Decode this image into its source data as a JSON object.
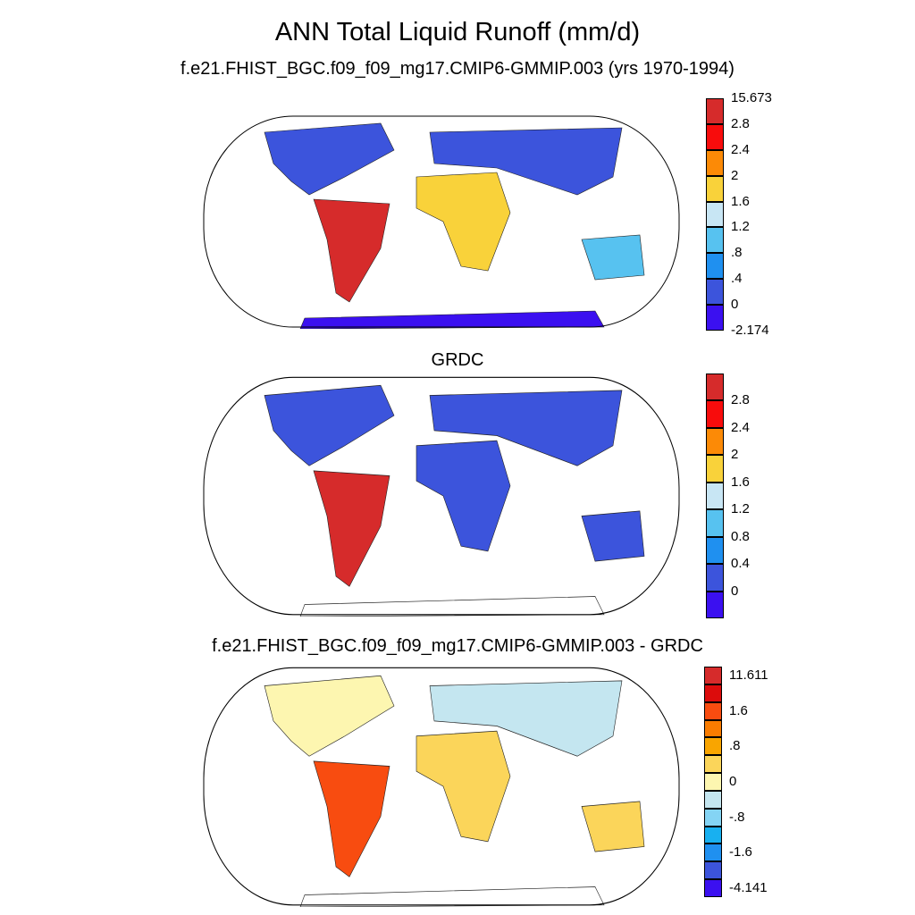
{
  "title": "ANN Total Liquid Runoff (mm/d)",
  "panels": [
    {
      "title": "f.e21.FHIST_BGC.f09_f09_mg17.CMIP6-GMMIP.003 (yrs 1970-1994)",
      "colors": [
        "#3b10f0",
        "#3c54dc",
        "#1f90f0",
        "#57c2f0",
        "#c8e6f4",
        "#f9d23a",
        "#fc8a06",
        "#f80c0c",
        "#d62b2b"
      ],
      "labels": [
        "15.673",
        "2.8",
        "2.4",
        "2",
        "1.6",
        "1.2",
        ".8",
        ".4",
        "0",
        "-2.174"
      ]
    },
    {
      "title": "GRDC",
      "colors": [
        "#3b10f0",
        "#3c54dc",
        "#1f90f0",
        "#57c2f0",
        "#c8e6f4",
        "#f9d23a",
        "#fc8a06",
        "#f80c0c",
        "#d62b2b"
      ],
      "labels": [
        "",
        "2.8",
        "2.4",
        "2",
        "1.6",
        "1.2",
        "0.8",
        "0.4",
        "0",
        ""
      ]
    },
    {
      "title": "f.e21.FHIST_BGC.f09_f09_mg17.CMIP6-GMMIP.003 - GRDC",
      "colors": [
        "#3b10f0",
        "#3c54dc",
        "#1f90f0",
        "#18b0f0",
        "#84d4f4",
        "#c4e6f0",
        "#fdf6b0",
        "#fbd55a",
        "#f9a500",
        "#f97c00",
        "#f84c10",
        "#dc0c0c",
        "#d62b2b"
      ],
      "labels": [
        "11.611",
        "",
        "1.6",
        "",
        ".8",
        "",
        "0",
        "",
        "-.8",
        "",
        "-1.6",
        "",
        "-4.141"
      ]
    }
  ]
}
